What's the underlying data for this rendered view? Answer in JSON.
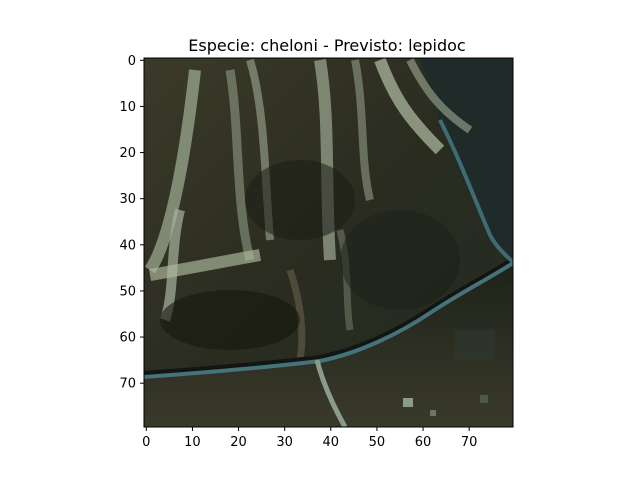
{
  "title": "Especie: cheloni - Previsto: lepidoc",
  "image": {
    "description_tag": "macro-photo-crop",
    "palette": {
      "background": "#2a2a1e",
      "soil_dark": "#1f2016",
      "soil_mid": "#3a3626",
      "vein_light": "#a7b49d",
      "vein_mid": "#7f8d78",
      "boundary_blue": "#3f6b73",
      "boundary_light": "#6c8f92",
      "shadow": "#111612"
    }
  },
  "axes": {
    "x_ticks": [
      "0",
      "10",
      "20",
      "30",
      "40",
      "50",
      "60",
      "70"
    ],
    "y_ticks": [
      "0",
      "10",
      "20",
      "30",
      "40",
      "50",
      "60",
      "70"
    ],
    "x_range": [
      -0.5,
      79.5
    ],
    "y_range": [
      -0.5,
      79.5
    ]
  }
}
